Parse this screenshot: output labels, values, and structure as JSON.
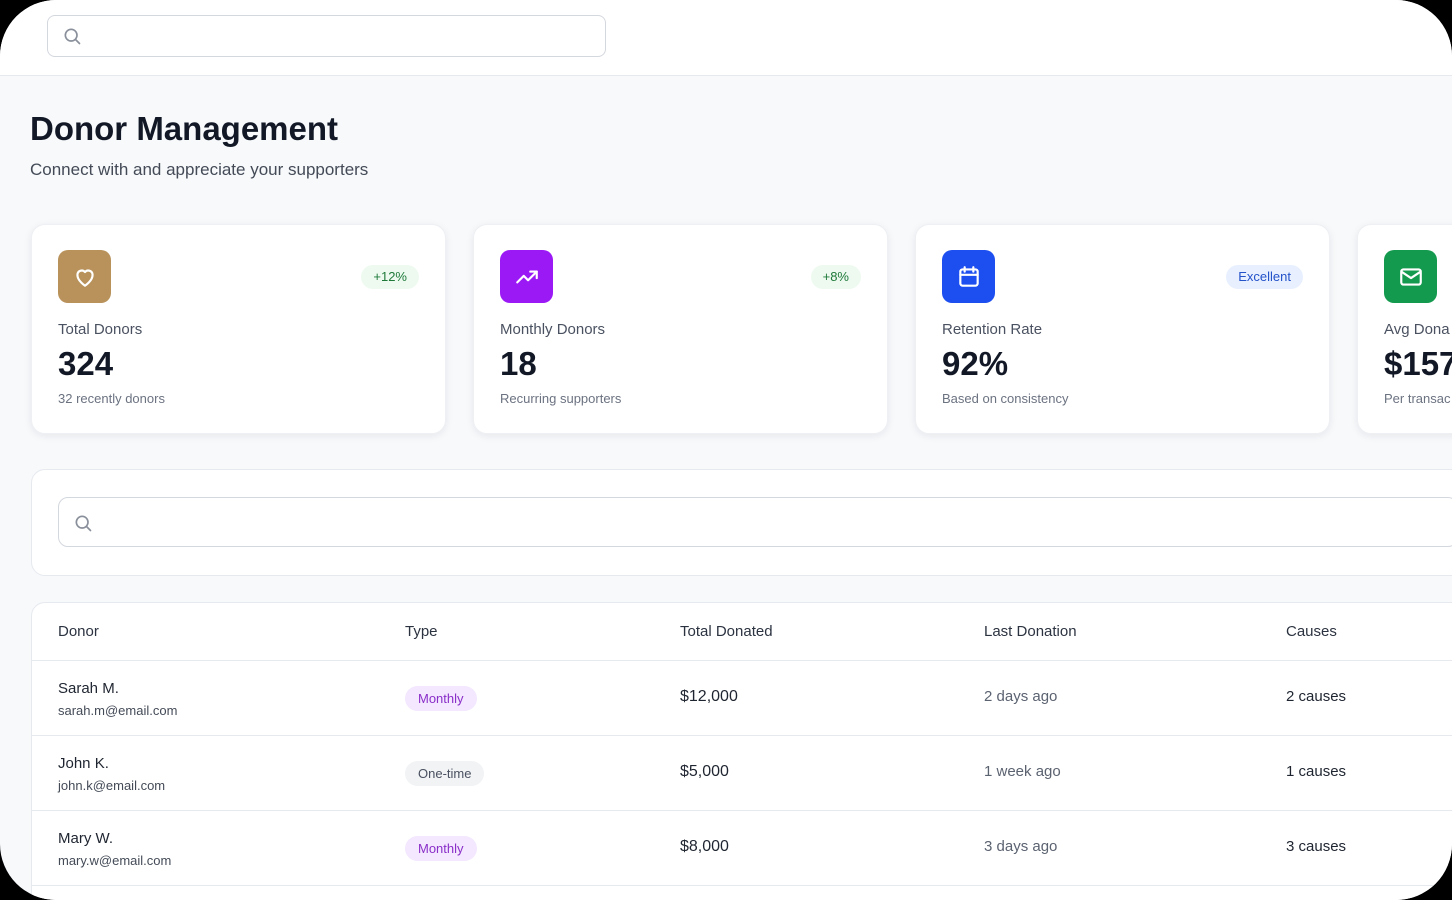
{
  "header": {
    "search": {
      "placeholder": "",
      "value": ""
    }
  },
  "page": {
    "title": "Donor Management",
    "subtitle": "Connect with and appreciate your supporters"
  },
  "stats": [
    {
      "label": "Total Donors",
      "value": "324",
      "note": "32 recently donors",
      "badge": "+12%",
      "icon": "heart-icon",
      "icon_bg": "#b8925a",
      "badge_bg": "#eefaf0",
      "badge_color": "#1f7a3a"
    },
    {
      "label": "Monthly Donors",
      "value": "18",
      "note": "Recurring supporters",
      "badge": "+8%",
      "icon": "trending-up-icon",
      "icon_bg": "#9b19f5",
      "badge_bg": "#eefaf0",
      "badge_color": "#1f7a3a"
    },
    {
      "label": "Retention Rate",
      "value": "92%",
      "note": "Based on consistency",
      "badge": "Excellent",
      "icon": "calendar-icon",
      "icon_bg": "#1d4ff0",
      "badge_bg": "#e8f0ff",
      "badge_color": "#2452c9"
    },
    {
      "label": "Avg Dona",
      "value": "$157",
      "note": "Per transac",
      "badge": "",
      "icon": "mail-icon",
      "icon_bg": "#139a4e",
      "badge_bg": "",
      "badge_color": ""
    }
  ],
  "filter": {
    "search": {
      "placeholder": "",
      "value": ""
    }
  },
  "table": {
    "columns": [
      "Donor",
      "Type",
      "Total Donated",
      "Last Donation",
      "Causes"
    ],
    "rows": [
      {
        "name": "Sarah M.",
        "email": "sarah.m@email.com",
        "type": "Monthly",
        "total": "$12,000",
        "last": "2 days ago",
        "causes": "2 causes"
      },
      {
        "name": "John K.",
        "email": "john.k@email.com",
        "type": "One-time",
        "total": "$5,000",
        "last": "1 week ago",
        "causes": "1 causes"
      },
      {
        "name": "Mary W.",
        "email": "mary.w@email.com",
        "type": "Monthly",
        "total": "$8,000",
        "last": "3 days ago",
        "causes": "3 causes"
      }
    ]
  }
}
